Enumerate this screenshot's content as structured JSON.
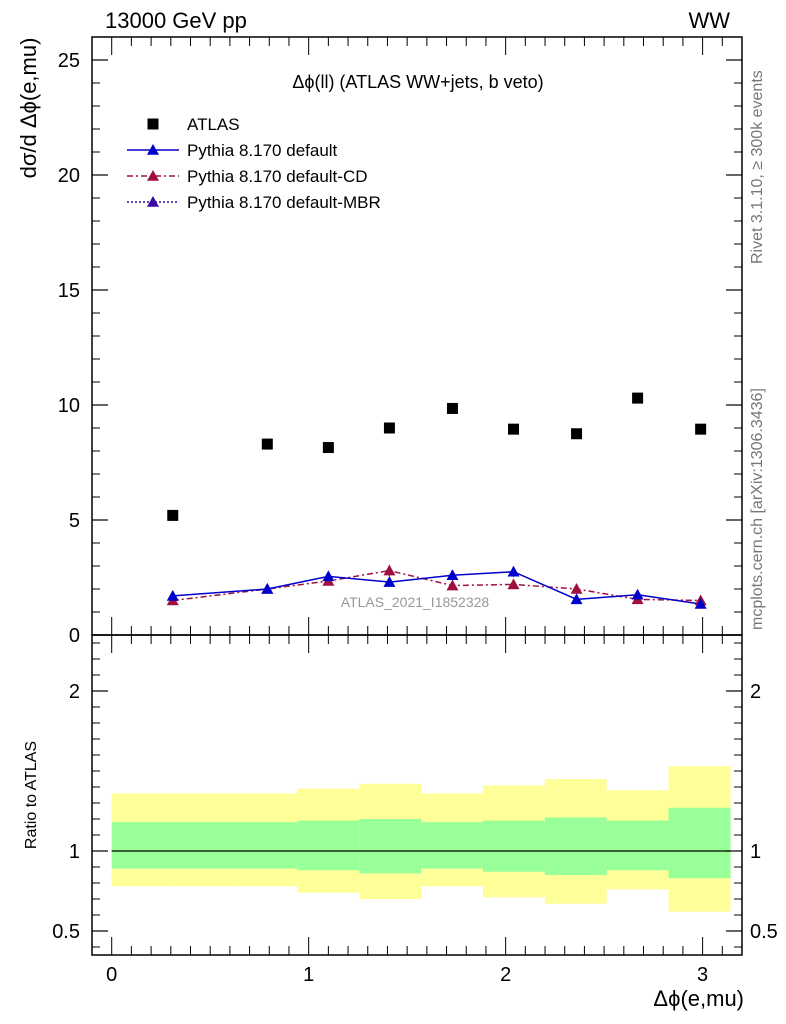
{
  "header": {
    "left": "13000 GeV pp",
    "right": "WW"
  },
  "side_texts": {
    "rivet": "Rivet 3.1.10, ≥ 300k events",
    "mcplots": "mcplots.cern.ch [arXiv:1306.3436]"
  },
  "watermark": "ATLAS_2021_I1852328",
  "colors": {
    "atlas": "#000000",
    "default": "#0000cc",
    "cd": "#a0103e",
    "mbr": "#3a0ca3",
    "band_inner": "#99ff99",
    "band_outer": "#ffff99"
  },
  "chart_data": [
    {
      "type": "scatter",
      "title": "Δϕ(ll) (ATLAS WW+jets, b veto)",
      "xlabel": "",
      "ylabel": "dσ/d Δϕ(e,mu)",
      "xlim": [
        -0.1,
        3.2
      ],
      "ylim": [
        0,
        26
      ],
      "yticks": [
        0,
        5,
        10,
        15,
        20,
        25
      ],
      "legend_position": "top-left",
      "legend": [
        "ATLAS",
        "Pythia 8.170 default",
        "Pythia 8.170 default-CD",
        "Pythia 8.170 default-MBR"
      ],
      "series": [
        {
          "name": "ATLAS",
          "x": [
            0.31,
            0.79,
            1.1,
            1.41,
            1.73,
            2.04,
            2.36,
            2.67,
            2.99
          ],
          "values": [
            5.2,
            8.3,
            8.15,
            9.0,
            9.85,
            8.95,
            8.75,
            10.3,
            8.95
          ]
        },
        {
          "name": "Pythia 8.170 default",
          "x": [
            0.31,
            0.79,
            1.1,
            1.41,
            1.73,
            2.04,
            2.36,
            2.67,
            2.99
          ],
          "values": [
            1.7,
            2.0,
            2.55,
            2.3,
            2.6,
            2.75,
            1.55,
            1.75,
            1.35
          ]
        },
        {
          "name": "Pythia 8.170 default-CD",
          "x": [
            0.31,
            0.79,
            1.1,
            1.41,
            1.73,
            2.04,
            2.36,
            2.67,
            2.99
          ],
          "values": [
            1.5,
            2.0,
            2.35,
            2.8,
            2.15,
            2.2,
            2.0,
            1.55,
            1.5
          ]
        },
        {
          "name": "Pythia 8.170 default-MBR",
          "x": [],
          "values": []
        }
      ]
    },
    {
      "type": "area",
      "xlabel": "Δϕ(e,mu)",
      "ylabel": "Ratio to ATLAS",
      "xlim": [
        -0.1,
        3.2
      ],
      "ylim": [
        0.35,
        2.35
      ],
      "yticks": [
        0.5,
        1,
        2
      ],
      "xticks": [
        0,
        1,
        2,
        3
      ],
      "bins": [
        0,
        0.314,
        0.628,
        0.942,
        1.257,
        1.571,
        1.885,
        2.199,
        2.513,
        2.827,
        3.142
      ],
      "band_inner": {
        "low": [
          0.89,
          0.89,
          0.89,
          0.88,
          0.86,
          0.89,
          0.87,
          0.85,
          0.88,
          0.83
        ],
        "high": [
          1.18,
          1.18,
          1.18,
          1.19,
          1.2,
          1.18,
          1.19,
          1.21,
          1.19,
          1.27
        ]
      },
      "band_outer": {
        "low": [
          0.78,
          0.78,
          0.78,
          0.74,
          0.7,
          0.78,
          0.71,
          0.67,
          0.76,
          0.62
        ],
        "high": [
          1.36,
          1.36,
          1.36,
          1.39,
          1.42,
          1.36,
          1.41,
          1.45,
          1.38,
          1.53
        ]
      },
      "reference_line": 1
    }
  ]
}
